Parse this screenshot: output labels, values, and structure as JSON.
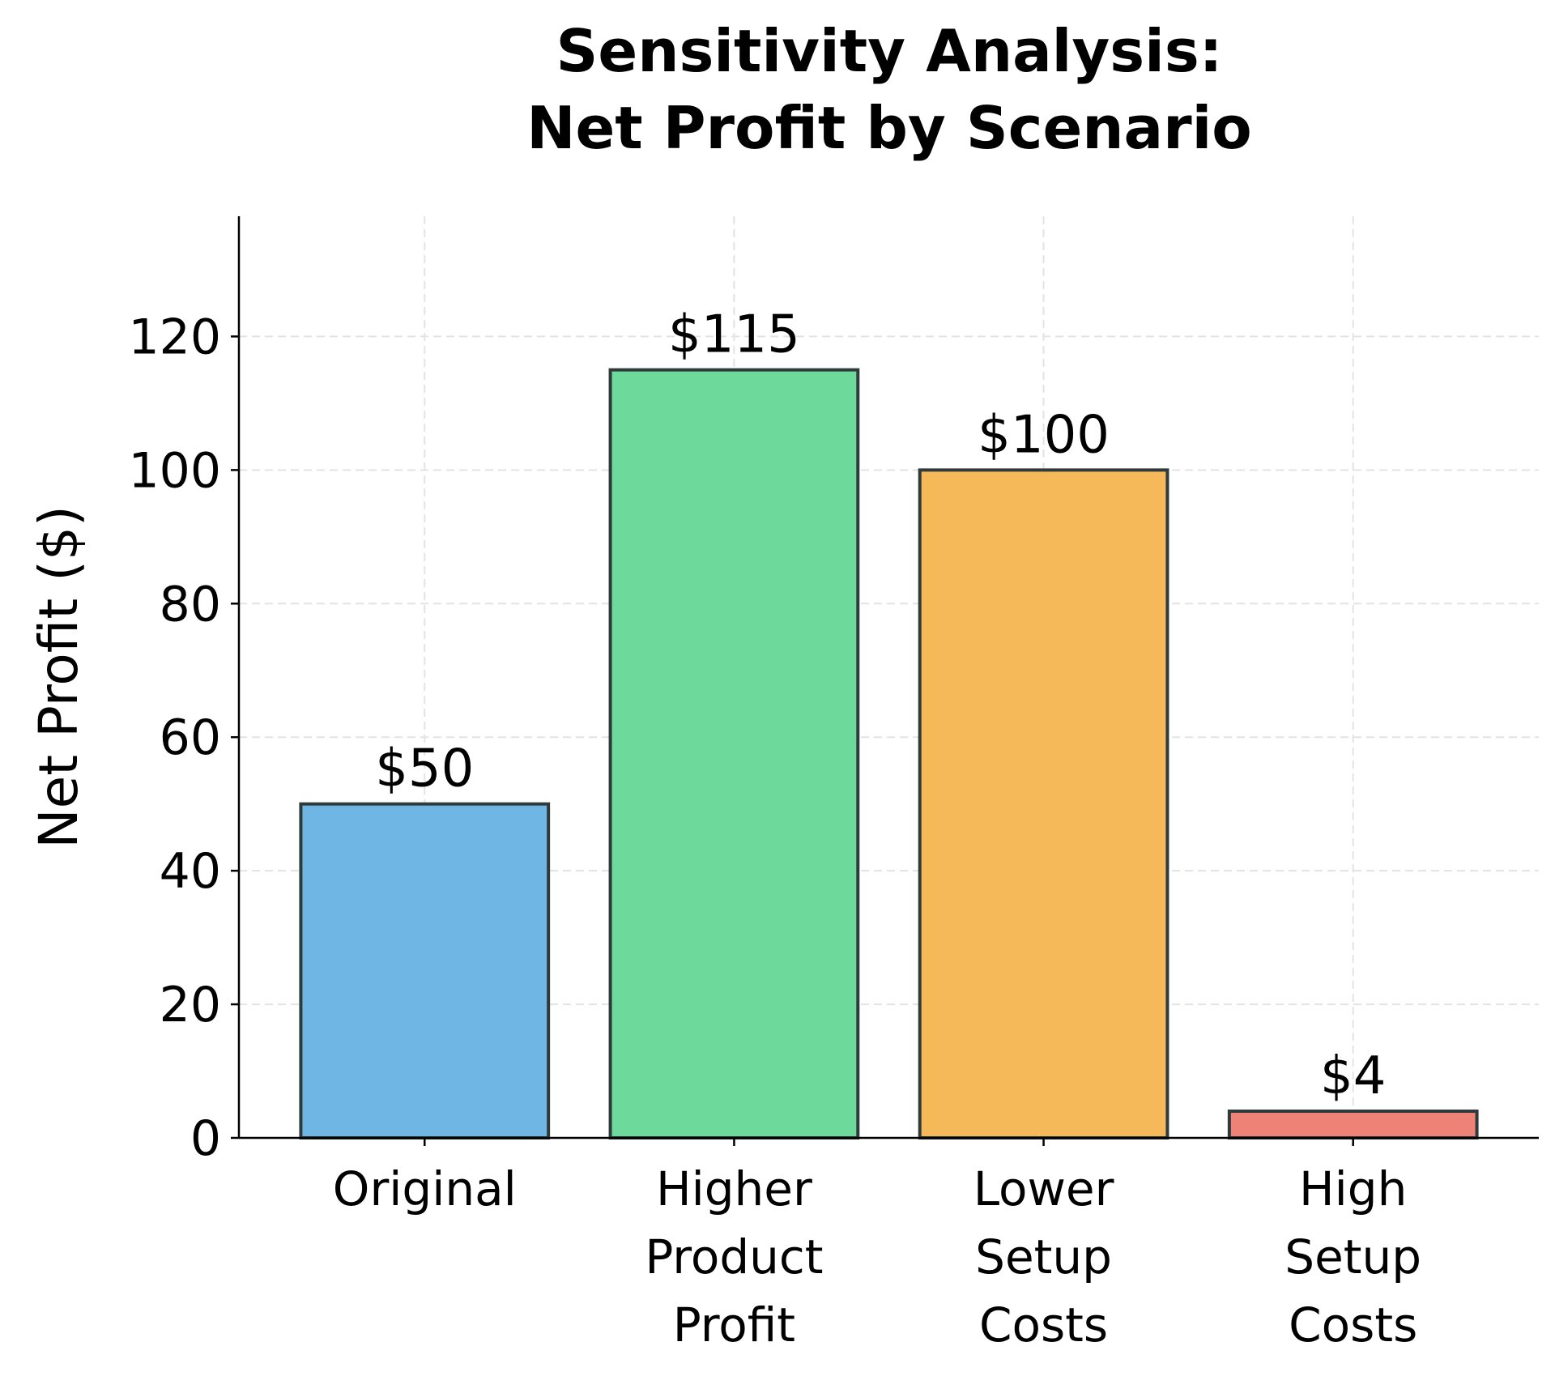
{
  "chart_data": {
    "type": "bar",
    "title": [
      "Sensitivity Analysis:",
      "Net Profit by Scenario"
    ],
    "xlabel": "",
    "ylabel": "Net Profit ($)",
    "categories": [
      [
        "Original"
      ],
      [
        "Higher",
        "Product",
        "Profit"
      ],
      [
        "Lower",
        "Setup",
        "Costs"
      ],
      [
        "High",
        "Setup",
        "Costs"
      ]
    ],
    "values": [
      50,
      115,
      100,
      4
    ],
    "data_labels": [
      "$50",
      "$115",
      "$100",
      "$4"
    ],
    "colors": [
      "#70b6e4",
      "#6dda9c",
      "#f5b95a",
      "#ee8276"
    ],
    "edge_color": "#2f3b3b",
    "ylim": [
      0,
      138
    ],
    "yticks": [
      0,
      20,
      40,
      60,
      80,
      100,
      120
    ],
    "grid": true,
    "zero_line": "dashed"
  }
}
